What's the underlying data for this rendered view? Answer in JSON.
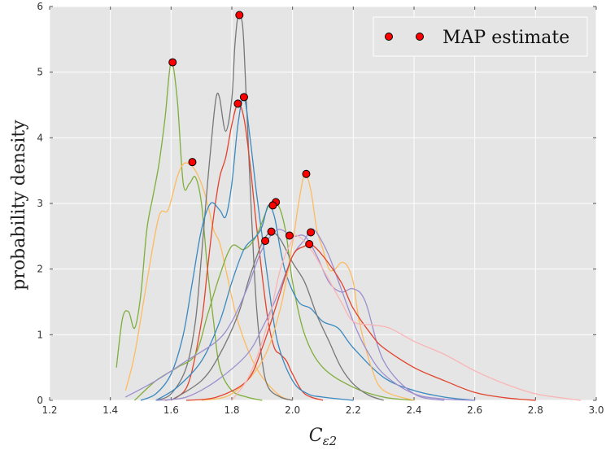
{
  "chart_data": {
    "type": "line",
    "title": "",
    "xlabel": "C_{ε2}",
    "ylabel": "probability density",
    "xlim": [
      1.2,
      3.0
    ],
    "ylim": [
      0,
      6
    ],
    "xticks": [
      "1.2",
      "1.4",
      "1.6",
      "1.8",
      "2.0",
      "2.2",
      "2.4",
      "2.6",
      "2.8",
      "3.0"
    ],
    "yticks": [
      "0",
      "1",
      "2",
      "3",
      "4",
      "5",
      "6"
    ],
    "grid": true,
    "legend": {
      "placement": "top-right",
      "entries": [
        "MAP estimate"
      ]
    },
    "colors": {
      "background": "#e5e5e5",
      "grid": "#ffffff",
      "marker_fill": "#ff0000",
      "marker_edge": "#000000"
    },
    "series": [
      {
        "color": "#7fae3a",
        "x": [
          1.42,
          1.44,
          1.46,
          1.48,
          1.5,
          1.52,
          1.54,
          1.56,
          1.58,
          1.6,
          1.62,
          1.64,
          1.66,
          1.68,
          1.7,
          1.72,
          1.74,
          1.76,
          1.8,
          1.85,
          1.9
        ],
        "y": [
          0.5,
          1.25,
          1.35,
          1.1,
          1.6,
          2.6,
          3.1,
          3.6,
          4.3,
          5.15,
          4.6,
          3.3,
          3.3,
          3.4,
          3.0,
          2.0,
          1.2,
          0.5,
          0.15,
          0.05,
          0.0
        ]
      },
      {
        "color": "#fdbb5f",
        "x": [
          1.45,
          1.48,
          1.52,
          1.56,
          1.59,
          1.62,
          1.64,
          1.66,
          1.68,
          1.7,
          1.72,
          1.74,
          1.76,
          1.78,
          1.82,
          1.88,
          1.95,
          2.0
        ],
        "y": [
          0.15,
          0.7,
          1.8,
          2.8,
          2.9,
          3.4,
          3.6,
          3.6,
          3.5,
          3.3,
          3.0,
          2.6,
          2.4,
          2.0,
          1.2,
          0.5,
          0.1,
          0.0
        ]
      },
      {
        "color": "#777777",
        "x": [
          1.55,
          1.6,
          1.65,
          1.68,
          1.7,
          1.72,
          1.74,
          1.75,
          1.76,
          1.78,
          1.8,
          1.81,
          1.82,
          1.83,
          1.84,
          1.86,
          1.88,
          1.9,
          1.92,
          1.96,
          2.0
        ],
        "y": [
          0.0,
          0.1,
          0.5,
          1.2,
          2.2,
          3.3,
          4.3,
          4.65,
          4.6,
          4.1,
          4.6,
          5.4,
          5.85,
          5.85,
          5.4,
          3.3,
          1.5,
          0.6,
          0.2,
          0.05,
          0.0
        ]
      },
      {
        "color": "#e2432d",
        "x": [
          1.58,
          1.62,
          1.66,
          1.7,
          1.72,
          1.74,
          1.76,
          1.78,
          1.8,
          1.82,
          1.84,
          1.86,
          1.88,
          1.9,
          1.92,
          1.94,
          1.96,
          1.98,
          2.0,
          2.04,
          2.1
        ],
        "y": [
          0.0,
          0.05,
          0.3,
          1.2,
          2.0,
          2.8,
          3.4,
          3.7,
          4.2,
          4.52,
          4.3,
          3.6,
          2.7,
          1.9,
          1.2,
          0.8,
          0.7,
          0.6,
          0.4,
          0.1,
          0.0
        ]
      },
      {
        "color": "#3a89c0",
        "x": [
          1.5,
          1.55,
          1.6,
          1.64,
          1.67,
          1.7,
          1.73,
          1.76,
          1.78,
          1.8,
          1.82,
          1.84,
          1.86,
          1.88,
          1.9,
          1.92,
          1.95,
          2.0,
          2.05,
          2.1,
          2.2
        ],
        "y": [
          0.0,
          0.1,
          0.4,
          1.0,
          1.8,
          2.6,
          3.0,
          2.9,
          2.8,
          3.3,
          4.2,
          4.62,
          4.0,
          3.2,
          2.5,
          1.8,
          0.9,
          0.3,
          0.1,
          0.05,
          0.0
        ]
      },
      {
        "color": "#7fae3a",
        "x": [
          1.48,
          1.55,
          1.62,
          1.68,
          1.72,
          1.76,
          1.8,
          1.84,
          1.88,
          1.92,
          1.94,
          1.96,
          1.98,
          2.0,
          2.04,
          2.1,
          2.2,
          2.3,
          2.4
        ],
        "y": [
          0.0,
          0.3,
          0.5,
          0.7,
          1.3,
          1.9,
          2.35,
          2.3,
          2.5,
          2.95,
          3.02,
          2.9,
          2.5,
          1.8,
          1.0,
          0.5,
          0.2,
          0.05,
          0.0
        ]
      },
      {
        "color": "#3a89c0",
        "x": [
          1.55,
          1.62,
          1.7,
          1.76,
          1.8,
          1.84,
          1.88,
          1.9,
          1.92,
          1.94,
          1.96,
          1.98,
          2.02,
          2.06,
          2.1,
          2.15,
          2.2,
          2.3,
          2.4,
          2.5,
          2.6
        ],
        "y": [
          0.0,
          0.2,
          0.6,
          1.2,
          1.8,
          2.3,
          2.5,
          2.65,
          2.97,
          2.8,
          2.3,
          1.9,
          1.5,
          1.4,
          1.2,
          1.1,
          0.8,
          0.35,
          0.15,
          0.05,
          0.0
        ]
      },
      {
        "color": "#777777",
        "x": [
          1.6,
          1.7,
          1.76,
          1.82,
          1.86,
          1.9,
          1.93,
          1.96,
          2.0,
          2.04,
          2.08,
          2.12,
          2.16,
          2.2,
          2.25,
          2.3
        ],
        "y": [
          0.0,
          0.3,
          0.7,
          1.3,
          1.9,
          2.4,
          2.56,
          2.45,
          2.1,
          1.8,
          1.3,
          0.9,
          0.5,
          0.25,
          0.08,
          0.0
        ]
      },
      {
        "color": "#fdbb5f",
        "x": [
          1.7,
          1.8,
          1.9,
          1.96,
          2.0,
          2.02,
          2.04,
          2.06,
          2.08,
          2.1,
          2.12,
          2.14,
          2.16,
          2.18,
          2.2,
          2.22,
          2.26,
          2.3,
          2.4
        ],
        "y": [
          0.0,
          0.1,
          0.6,
          1.4,
          2.4,
          3.0,
          3.45,
          3.2,
          2.6,
          2.3,
          2.0,
          2.0,
          2.1,
          2.05,
          1.8,
          1.2,
          0.5,
          0.15,
          0.0
        ]
      },
      {
        "color": "#9d8fd0",
        "x": [
          1.45,
          1.55,
          1.65,
          1.75,
          1.8,
          1.85,
          1.9,
          1.95,
          2.0,
          2.04,
          2.08,
          2.12,
          2.16,
          2.2,
          2.24,
          2.3,
          2.4,
          2.5
        ],
        "y": [
          0.05,
          0.3,
          0.6,
          0.9,
          1.2,
          1.7,
          2.3,
          2.6,
          2.5,
          2.5,
          2.2,
          1.8,
          1.65,
          1.7,
          1.5,
          0.6,
          0.1,
          0.0
        ]
      },
      {
        "color": "#9d8fd0",
        "x": [
          1.55,
          1.65,
          1.75,
          1.85,
          1.9,
          1.95,
          2.0,
          2.04,
          2.06,
          2.08,
          2.12,
          2.16,
          2.2,
          2.24,
          2.3,
          2.4,
          2.5,
          2.6
        ],
        "y": [
          0.0,
          0.05,
          0.3,
          0.7,
          1.1,
          1.6,
          2.2,
          2.45,
          2.6,
          2.55,
          2.2,
          1.7,
          1.2,
          0.8,
          0.4,
          0.1,
          0.02,
          0.0
        ]
      },
      {
        "color": "#e2432d",
        "x": [
          1.65,
          1.75,
          1.85,
          1.9,
          1.95,
          2.0,
          2.04,
          2.06,
          2.1,
          2.16,
          2.2,
          2.26,
          2.3,
          2.4,
          2.5,
          2.6,
          2.7,
          2.8
        ],
        "y": [
          0.0,
          0.05,
          0.3,
          0.8,
          1.5,
          2.2,
          2.35,
          2.38,
          2.2,
          1.8,
          1.4,
          1.0,
          0.8,
          0.5,
          0.3,
          0.12,
          0.04,
          0.0
        ]
      },
      {
        "color": "#fbb4b4",
        "x": [
          1.8,
          1.86,
          1.92,
          1.96,
          2.0,
          2.02,
          2.06,
          2.1,
          2.16,
          2.2,
          2.26,
          2.32,
          2.4,
          2.5,
          2.6,
          2.7,
          2.8,
          2.9,
          2.95
        ],
        "y": [
          0.0,
          0.4,
          1.2,
          2.0,
          2.45,
          2.5,
          2.3,
          2.0,
          1.5,
          1.2,
          1.15,
          1.1,
          0.9,
          0.7,
          0.45,
          0.25,
          0.1,
          0.03,
          0.0
        ]
      }
    ],
    "map_points": [
      {
        "x": 1.605,
        "y": 5.15
      },
      {
        "x": 1.825,
        "y": 5.87
      },
      {
        "x": 1.82,
        "y": 4.52
      },
      {
        "x": 1.84,
        "y": 4.62
      },
      {
        "x": 1.67,
        "y": 3.63
      },
      {
        "x": 2.045,
        "y": 3.45
      },
      {
        "x": 1.945,
        "y": 3.02
      },
      {
        "x": 1.935,
        "y": 2.97
      },
      {
        "x": 1.93,
        "y": 2.57
      },
      {
        "x": 1.91,
        "y": 2.43
      },
      {
        "x": 1.99,
        "y": 2.51
      },
      {
        "x": 2.06,
        "y": 2.56
      },
      {
        "x": 2.055,
        "y": 2.38
      }
    ]
  }
}
